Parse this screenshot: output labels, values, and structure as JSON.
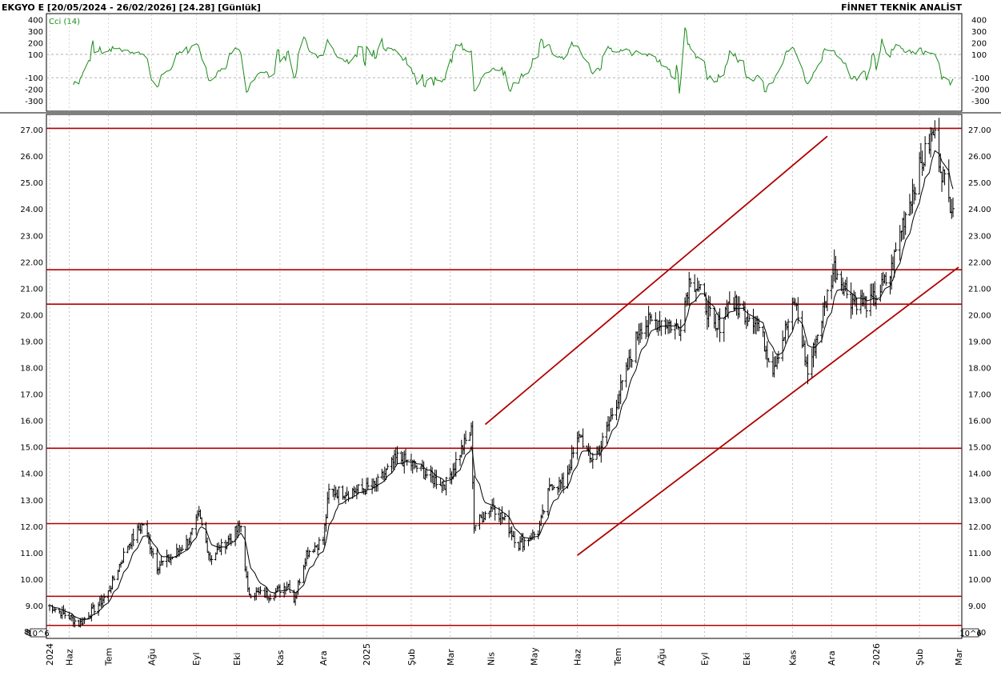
{
  "header": {
    "title": "EKGYO E  [20/05/2024 - 26/02/2026]  [24.28]  [Günlük]",
    "vendor": "FİNNET TEKNİK ANALİST"
  },
  "indicator": {
    "name": "Cci (14)",
    "ticks": [
      "400",
      "300",
      "200",
      "100",
      "-100",
      "-200",
      "-300"
    ],
    "levels": [
      400,
      300,
      200,
      100,
      -100,
      -200,
      -300
    ],
    "dashed_levels": [
      100,
      -100
    ],
    "color": "#1a8a1a"
  },
  "price_axis": {
    "ticks": [
      "27.00",
      "26.00",
      "25.00",
      "24.00",
      "23.00",
      "22.00",
      "21.00",
      "20.00",
      "19.00",
      "18.00",
      "17.00",
      "16.00",
      "15.00",
      "14.00",
      "13.00",
      "12.00",
      "11.00",
      "10.00",
      "9.00",
      "8.00"
    ],
    "scale_note": "10^6",
    "left_first_label": "8"
  },
  "time_axis": {
    "labels": [
      "2024",
      "Haz",
      "Tem",
      "Ağu",
      "Eyl",
      "Eki",
      "Kas",
      "Ara",
      "2025",
      "Şub",
      "Mar",
      "Nis",
      "May",
      "Haz",
      "Tem",
      "Ağu",
      "Eyl",
      "Eki",
      "Kas",
      "Ara",
      "2026",
      "Şub",
      "Mar"
    ]
  },
  "chart_data": {
    "type": "ohlc",
    "symbol": "EKGYO E",
    "date_range": [
      "20/05/2024",
      "26/02/2026"
    ],
    "last_price": 24.28,
    "period": "Günlük",
    "ylim": [
      8,
      27.3
    ],
    "moving_average": true,
    "horizontal_levels": [
      27.05,
      21.7,
      20.4,
      14.95,
      12.1,
      9.35,
      8.25
    ],
    "channel_upper": [
      [
        "2025-03-28",
        15.85
      ],
      [
        "2025-11-28",
        26.75
      ]
    ],
    "channel_lower": [
      [
        "2025-06-02",
        10.9
      ],
      [
        "2026-03-02",
        21.8
      ]
    ],
    "price_path": [
      [
        "2024-05-20",
        9.0
      ],
      [
        "2024-06-05",
        8.5
      ],
      [
        "2024-06-10",
        8.3
      ],
      [
        "2024-06-25",
        9.1
      ],
      [
        "2024-07-01",
        9.5
      ],
      [
        "2024-07-15",
        11.3
      ],
      [
        "2024-07-26",
        12.1
      ],
      [
        "2024-08-05",
        10.5
      ],
      [
        "2024-08-15",
        10.8
      ],
      [
        "2024-08-28",
        11.5
      ],
      [
        "2024-09-04",
        12.4
      ],
      [
        "2024-09-12",
        10.8
      ],
      [
        "2024-09-20",
        11.2
      ],
      [
        "2024-10-04",
        12.0
      ],
      [
        "2024-10-09",
        9.5
      ],
      [
        "2024-10-25",
        9.4
      ],
      [
        "2024-11-07",
        9.8
      ],
      [
        "2024-11-11",
        9.2
      ],
      [
        "2024-11-20",
        11.0
      ],
      [
        "2024-12-02",
        11.5
      ],
      [
        "2024-12-06",
        13.3
      ],
      [
        "2024-12-20",
        13.3
      ],
      [
        "2025-01-08",
        13.5
      ],
      [
        "2025-01-24",
        14.6
      ],
      [
        "2025-02-05",
        14.3
      ],
      [
        "2025-02-18",
        13.8
      ],
      [
        "2025-02-28",
        13.6
      ],
      [
        "2025-03-10",
        14.8
      ],
      [
        "2025-03-18",
        15.6
      ],
      [
        "2025-03-20",
        12.0
      ],
      [
        "2025-04-02",
        12.8
      ],
      [
        "2025-04-11",
        12.2
      ],
      [
        "2025-04-21",
        11.3
      ],
      [
        "2025-05-05",
        11.8
      ],
      [
        "2025-05-14",
        13.6
      ],
      [
        "2025-05-23",
        13.6
      ],
      [
        "2025-06-04",
        15.5
      ],
      [
        "2025-06-11",
        14.5
      ],
      [
        "2025-06-18",
        14.9
      ],
      [
        "2025-07-07",
        17.8
      ],
      [
        "2025-07-17",
        19.6
      ],
      [
        "2025-07-31",
        19.8
      ],
      [
        "2025-08-14",
        19.5
      ],
      [
        "2025-08-22",
        21.5
      ],
      [
        "2025-09-01",
        20.5
      ],
      [
        "2025-09-09",
        19.3
      ],
      [
        "2025-09-19",
        20.5
      ],
      [
        "2025-10-08",
        19.8
      ],
      [
        "2025-10-20",
        18.0
      ],
      [
        "2025-11-05",
        20.5
      ],
      [
        "2025-11-14",
        17.8
      ],
      [
        "2025-12-03",
        21.8
      ],
      [
        "2025-12-15",
        20.6
      ],
      [
        "2025-12-29",
        20.4
      ],
      [
        "2026-01-12",
        21.5
      ],
      [
        "2026-01-21",
        23.5
      ],
      [
        "2026-02-02",
        25.5
      ],
      [
        "2026-02-12",
        26.9
      ],
      [
        "2026-02-23",
        24.3
      ],
      [
        "2026-02-26",
        24.28
      ]
    ]
  },
  "colors": {
    "price_bars": "#000000",
    "levels": "#b00000",
    "channel": "#b00000",
    "grid": "#aaaaaa",
    "indicator": "#1a8a1a"
  }
}
